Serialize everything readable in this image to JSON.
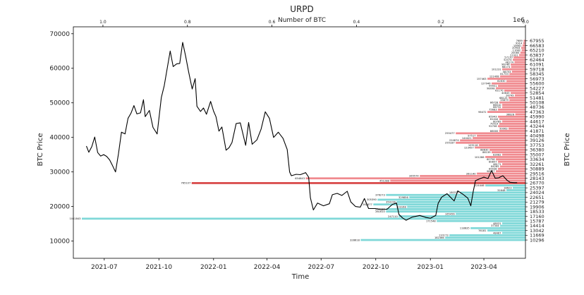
{
  "chart_data": {
    "type": "line",
    "title": "URPD",
    "top_axis_label": "Number of BTC",
    "top_axis_multiplier": "1e6",
    "top_axis_ticks": [
      "1.0",
      "0.8",
      "0.6",
      "0.4",
      "0.2",
      "0.0"
    ],
    "top_axis_range": [
      1.07,
      0.0
    ],
    "xlabel": "Time",
    "ylabel": "BTC Price",
    "ylabel_right": "BTC Price",
    "xlim": [
      "2021-05-10",
      "2023-06-10"
    ],
    "ylim": [
      5000,
      72000
    ],
    "x_ticks": [
      "2021-07",
      "2021-10",
      "2022-01",
      "2022-04",
      "2022-07",
      "2022-10",
      "2023-01",
      "2023-04"
    ],
    "y_ticks": [
      "10000",
      "20000",
      "30000",
      "40000",
      "50000",
      "60000",
      "70000"
    ],
    "right_ticks": [
      "67955",
      "66583",
      "65210",
      "63837",
      "62464",
      "61091",
      "59718",
      "58345",
      "56973",
      "55600",
      "54227",
      "52854",
      "51481",
      "50108",
      "48736",
      "47363",
      "45990",
      "44617",
      "43244",
      "41871",
      "40498",
      "39126",
      "37753",
      "36380",
      "35007",
      "33634",
      "32261",
      "30889",
      "29516",
      "28143",
      "26770",
      "25397",
      "24024",
      "22651",
      "21279",
      "19906",
      "18533",
      "17160",
      "15787",
      "14414",
      "13042",
      "11669",
      "10296"
    ],
    "price_line": {
      "dates": [
        "2021-06-01",
        "2021-06-05",
        "2021-06-10",
        "2021-06-15",
        "2021-06-20",
        "2021-06-25",
        "2021-06-30",
        "2021-07-05",
        "2021-07-10",
        "2021-07-15",
        "2021-07-20",
        "2021-07-25",
        "2021-07-30",
        "2021-08-05",
        "2021-08-10",
        "2021-08-15",
        "2021-08-20",
        "2021-08-25",
        "2021-08-31",
        "2021-09-05",
        "2021-09-08",
        "2021-09-15",
        "2021-09-21",
        "2021-09-28",
        "2021-10-05",
        "2021-10-10",
        "2021-10-15",
        "2021-10-20",
        "2021-10-25",
        "2021-10-31",
        "2021-11-05",
        "2021-11-10",
        "2021-11-15",
        "2021-11-20",
        "2021-11-26",
        "2021-12-01",
        "2021-12-04",
        "2021-12-10",
        "2021-12-15",
        "2021-12-20",
        "2021-12-27",
        "2022-01-01",
        "2022-01-05",
        "2022-01-10",
        "2022-01-15",
        "2022-01-22",
        "2022-01-27",
        "2022-02-01",
        "2022-02-08",
        "2022-02-15",
        "2022-02-24",
        "2022-03-01",
        "2022-03-07",
        "2022-03-15",
        "2022-03-22",
        "2022-03-29",
        "2022-04-05",
        "2022-04-12",
        "2022-04-20",
        "2022-04-28",
        "2022-05-05",
        "2022-05-09",
        "2022-05-12",
        "2022-05-20",
        "2022-05-27",
        "2022-06-05",
        "2022-06-10",
        "2022-06-13",
        "2022-06-18",
        "2022-06-25",
        "2022-07-05",
        "2022-07-15",
        "2022-07-20",
        "2022-07-28",
        "2022-08-05",
        "2022-08-14",
        "2022-08-20",
        "2022-08-28",
        "2022-09-05",
        "2022-09-12",
        "2022-09-19",
        "2022-09-30",
        "2022-10-10",
        "2022-10-20",
        "2022-10-29",
        "2022-11-05",
        "2022-11-09",
        "2022-11-15",
        "2022-11-21",
        "2022-12-01",
        "2022-12-14",
        "2022-12-25",
        "2023-01-01",
        "2023-01-10",
        "2023-01-14",
        "2023-01-20",
        "2023-01-29",
        "2023-02-10",
        "2023-02-16",
        "2023-02-25",
        "2023-03-05",
        "2023-03-10",
        "2023-03-14",
        "2023-03-18",
        "2023-03-25",
        "2023-04-01",
        "2023-04-08",
        "2023-04-14",
        "2023-04-20",
        "2023-04-26",
        "2023-05-03",
        "2023-05-10",
        "2023-05-15",
        "2023-05-22",
        "2023-05-27"
      ],
      "values": [
        37500,
        35700,
        37300,
        40100,
        35600,
        34600,
        35000,
        34500,
        33500,
        31800,
        30000,
        35300,
        41500,
        41000,
        45500,
        47000,
        49200,
        46800,
        47100,
        50900,
        46000,
        47800,
        42900,
        41000,
        51500,
        55000,
        60000,
        65000,
        60500,
        61300,
        61400,
        67500,
        63500,
        59000,
        54000,
        57000,
        49000,
        47500,
        48500,
        46700,
        50400,
        47600,
        46000,
        41800,
        43000,
        36300,
        37000,
        38500,
        44000,
        44200,
        37700,
        44300,
        38000,
        39300,
        42400,
        47400,
        45500,
        40000,
        41500,
        39700,
        36500,
        30000,
        28900,
        29300,
        29200,
        29800,
        28500,
        22500,
        19000,
        21000,
        20200,
        20800,
        23400,
        23800,
        23200,
        24400,
        21300,
        20000,
        19800,
        22300,
        19400,
        19400,
        19100,
        19200,
        20600,
        21000,
        17700,
        16700,
        16000,
        16900,
        17400,
        16800,
        16600,
        17400,
        20900,
        22700,
        23700,
        21600,
        24500,
        23500,
        22400,
        20200,
        24300,
        27500,
        28000,
        28500,
        28100,
        30400,
        28200,
        28300,
        28900,
        27600,
        27000,
        26900,
        26900
      ]
    },
    "urpd_bars": [
      {
        "price": 67955,
        "btc": 4500,
        "label": "7689"
      },
      {
        "price": 67268,
        "btc": 5500,
        "label": "9914"
      },
      {
        "price": 66583,
        "btc": 7000,
        "label": "10661"
      },
      {
        "price": 65897,
        "btc": 10000,
        "label": "20944"
      },
      {
        "price": 65210,
        "btc": 9000,
        "label": "11082"
      },
      {
        "price": 64524,
        "btc": 12000,
        "label": "20085"
      },
      {
        "price": 63837,
        "btc": 15000,
        "label": "21931"
      },
      {
        "price": 63150,
        "btc": 28000,
        "label": "57110"
      },
      {
        "price": 62464,
        "btc": 30000,
        "label": "52074"
      },
      {
        "price": 61777,
        "btc": 26000,
        "label": "48174"
      },
      {
        "price": 61091,
        "btc": 35000,
        "label": "96746"
      },
      {
        "price": 60404,
        "btc": 34000,
        "label": "68174"
      },
      {
        "price": 59718,
        "btc": 55000,
        "label": "101231"
      },
      {
        "price": 59031,
        "btc": 32000,
        "label": "58753"
      },
      {
        "price": 58345,
        "btc": 38000,
        "label": "81733"
      },
      {
        "price": 57659,
        "btc": 60000,
        "label": "121408"
      },
      {
        "price": 56973,
        "btc": 90000,
        "label": "157463"
      },
      {
        "price": 56286,
        "btc": 45000,
        "label": "82830"
      },
      {
        "price": 55600,
        "btc": 80000,
        "label": "127946"
      },
      {
        "price": 54913,
        "btc": 65000,
        "label": "99951"
      },
      {
        "price": 54227,
        "btc": 70000,
        "label": "98098"
      },
      {
        "price": 53540,
        "btc": 50000,
        "label": "61170"
      },
      {
        "price": 52854,
        "btc": 35000,
        "label": "40645"
      },
      {
        "price": 52167,
        "btc": 25000,
        "label": "28749"
      },
      {
        "price": 51481,
        "btc": 40000,
        "label": "68125"
      },
      {
        "price": 50794,
        "btc": 38000,
        "label": "35879"
      },
      {
        "price": 50108,
        "btc": 62000,
        "label": "86728"
      },
      {
        "price": 49422,
        "btc": 55000,
        "label": "66510"
      },
      {
        "price": 48736,
        "btc": 55000,
        "label": "66732"
      },
      {
        "price": 48049,
        "btc": 65000,
        "label": "75683"
      },
      {
        "price": 47363,
        "btc": 90000,
        "label": "96472"
      },
      {
        "price": 46676,
        "btc": 24000,
        "label": "36828"
      },
      {
        "price": 45990,
        "btc": 65000,
        "label": "85943"
      },
      {
        "price": 45303,
        "btc": 62000,
        "label": "61444"
      },
      {
        "price": 44617,
        "btc": 55000,
        "label": "60789"
      },
      {
        "price": 43930,
        "btc": 62000,
        "label": "70519"
      },
      {
        "price": 43244,
        "btc": 65000,
        "label": "92708"
      },
      {
        "price": 42557,
        "btc": 40000,
        "label": "50063"
      },
      {
        "price": 41871,
        "btc": 62000,
        "label": "86000"
      },
      {
        "price": 41184,
        "btc": 165000,
        "label": "255477"
      },
      {
        "price": 40498,
        "btc": 115000,
        "label": "97517"
      },
      {
        "price": 39812,
        "btc": 125000,
        "label": "144421"
      },
      {
        "price": 39126,
        "btc": 155000,
        "label": "224874"
      },
      {
        "price": 38439,
        "btc": 165000,
        "label": "255187"
      },
      {
        "price": 37753,
        "btc": 110000,
        "label": "109116"
      },
      {
        "price": 37066,
        "btc": 120000,
        "label": "123457"
      },
      {
        "price": 36380,
        "btc": 85000,
        "label": "88830"
      },
      {
        "price": 35693,
        "btc": 80000,
        "label": "86139"
      },
      {
        "price": 35007,
        "btc": 55000,
        "label": "83082"
      },
      {
        "price": 34320,
        "btc": 95000,
        "label": "101286"
      },
      {
        "price": 33634,
        "btc": 70000,
        "label": "60756"
      },
      {
        "price": 32947,
        "btc": 65000,
        "label": "80857"
      },
      {
        "price": 32261,
        "btc": 55000,
        "label": "46171"
      },
      {
        "price": 31574,
        "btc": 60000,
        "label": "84285"
      },
      {
        "price": 30889,
        "btc": 65000,
        "label": "89938"
      },
      {
        "price": 30202,
        "btc": 70000,
        "label": "98977"
      },
      {
        "price": 29516,
        "btc": 115000,
        "label": "261140"
      },
      {
        "price": 28829,
        "btc": 250000,
        "label": "265574"
      },
      {
        "price": 28143,
        "btc": 520000,
        "label": "654643"
      },
      {
        "price": 27456,
        "btc": 320000,
        "label": "451288"
      },
      {
        "price": 26770,
        "btc": 790000,
        "label": "765107"
      },
      {
        "price": 26083,
        "btc": 95000,
        "label": "124446"
      },
      {
        "price": 25397,
        "btc": 30000,
        "label": "18623"
      },
      {
        "price": 24710,
        "btc": 45000,
        "label": "31648"
      },
      {
        "price": 24024,
        "btc": 155000,
        "label": "180377"
      },
      {
        "price": 23337,
        "btc": 330000,
        "label": "376273"
      },
      {
        "price": 22651,
        "btc": 275000,
        "label": "329856"
      },
      {
        "price": 21965,
        "btc": 350000,
        "label": "305390"
      },
      {
        "price": 21279,
        "btc": 305000,
        "label": "354198"
      },
      {
        "price": 20592,
        "btc": 360000,
        "label": "262877"
      },
      {
        "price": 19906,
        "btc": 280000,
        "label": "303168"
      },
      {
        "price": 19219,
        "btc": 330000,
        "label": "237280"
      },
      {
        "price": 18533,
        "btc": 330000,
        "label": "261610"
      },
      {
        "price": 17846,
        "btc": 165000,
        "label": "165456"
      },
      {
        "price": 17160,
        "btc": 300000,
        "label": "247110"
      },
      {
        "price": 16473,
        "btc": 1050000,
        "label": "1041843"
      },
      {
        "price": 15787,
        "btc": 210000,
        "label": "171548"
      },
      {
        "price": 15100,
        "btc": 55000,
        "label": "48031"
      },
      {
        "price": 14414,
        "btc": 60000,
        "label": "37344"
      },
      {
        "price": 13727,
        "btc": 130000,
        "label": "118635"
      },
      {
        "price": 13042,
        "btc": 90000,
        "label": "76181"
      },
      {
        "price": 12355,
        "btc": 55000,
        "label": "48467"
      },
      {
        "price": 11669,
        "btc": 180000,
        "label": "110173"
      },
      {
        "price": 10982,
        "btc": 190000,
        "label": "182366"
      },
      {
        "price": 10296,
        "btc": 390000,
        "label": "328618"
      }
    ],
    "colors": {
      "price_line": "#000000",
      "bars_above_current": "#f08a8f",
      "bars_below_current": "#7fd8d8",
      "current_price_row": "#d84848"
    },
    "current_price": 26770,
    "grid": false,
    "legend": "none"
  }
}
